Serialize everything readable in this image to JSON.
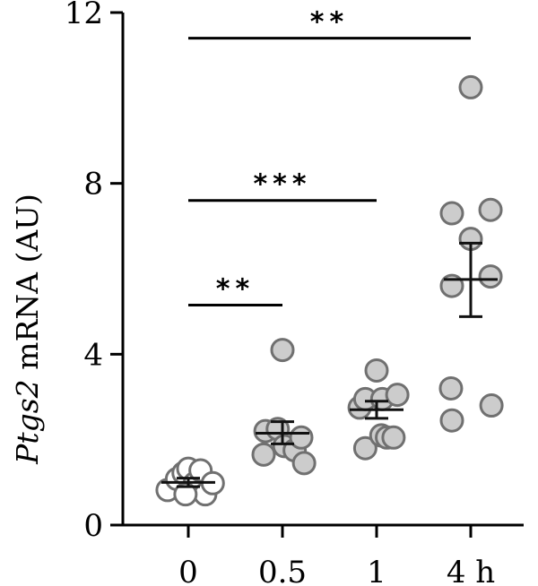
{
  "chart_data": {
    "type": "scatter",
    "ylabel_italic": "Ptgs2",
    "ylabel_rest": " mRNA (AU)",
    "ylim": [
      0,
      12
    ],
    "yticks": [
      "0",
      "4",
      "8",
      "12"
    ],
    "categories": [
      "0",
      "0.5",
      "1",
      "4 h"
    ],
    "groups": [
      {
        "category": "0",
        "fill": "#ffffff",
        "points": [
          {
            "dx": -0.22,
            "y": 0.82
          },
          {
            "dx": -0.12,
            "y": 1.08
          },
          {
            "dx": -0.05,
            "y": 1.22
          },
          {
            "dx": 0.0,
            "y": 1.32
          },
          {
            "dx": 0.07,
            "y": 0.98
          },
          {
            "dx": 0.13,
            "y": 1.28
          },
          {
            "dx": 0.18,
            "y": 0.72
          },
          {
            "dx": 0.26,
            "y": 0.98
          },
          {
            "dx": -0.03,
            "y": 0.72
          }
        ],
        "mean": 1.0,
        "sem_low": 0.9,
        "sem_high": 1.1
      },
      {
        "category": "0.5",
        "fill": "#cccccc",
        "points": [
          {
            "dx": 0.0,
            "y": 4.1
          },
          {
            "dx": -0.18,
            "y": 2.2
          },
          {
            "dx": -0.2,
            "y": 1.65
          },
          {
            "dx": -0.05,
            "y": 2.25
          },
          {
            "dx": 0.02,
            "y": 1.85
          },
          {
            "dx": 0.13,
            "y": 1.75
          },
          {
            "dx": 0.2,
            "y": 2.05
          },
          {
            "dx": 0.23,
            "y": 1.45
          }
        ],
        "mean": 2.15,
        "sem_low": 1.9,
        "sem_high": 2.42
      },
      {
        "category": "1",
        "fill": "#cccccc",
        "points": [
          {
            "dx": 0.0,
            "y": 3.62
          },
          {
            "dx": -0.18,
            "y": 2.75
          },
          {
            "dx": -0.12,
            "y": 2.95
          },
          {
            "dx": 0.06,
            "y": 2.95
          },
          {
            "dx": 0.22,
            "y": 3.05
          },
          {
            "dx": -0.12,
            "y": 1.8
          },
          {
            "dx": 0.05,
            "y": 2.1
          },
          {
            "dx": 0.11,
            "y": 2.05
          },
          {
            "dx": 0.18,
            "y": 2.05
          }
        ],
        "mean": 2.7,
        "sem_low": 2.5,
        "sem_high": 2.9
      },
      {
        "category": "4 h",
        "fill": "#cccccc",
        "points": [
          {
            "dx": 0.0,
            "y": 10.25
          },
          {
            "dx": -0.2,
            "y": 7.3
          },
          {
            "dx": 0.21,
            "y": 7.38
          },
          {
            "dx": 0.0,
            "y": 6.7
          },
          {
            "dx": -0.2,
            "y": 5.6
          },
          {
            "dx": 0.21,
            "y": 5.82
          },
          {
            "dx": -0.21,
            "y": 3.2
          },
          {
            "dx": 0.22,
            "y": 2.8
          },
          {
            "dx": -0.2,
            "y": 2.45
          }
        ],
        "mean": 5.75,
        "sem_low": 4.88,
        "sem_high": 6.6
      }
    ],
    "significance": [
      {
        "from": "0",
        "to": "0.5",
        "y": 5.15,
        "label": "**"
      },
      {
        "from": "0",
        "to": "1",
        "y": 7.6,
        "label": "***"
      },
      {
        "from": "0",
        "to": "4 h",
        "y": 11.4,
        "label": "**"
      }
    ]
  }
}
